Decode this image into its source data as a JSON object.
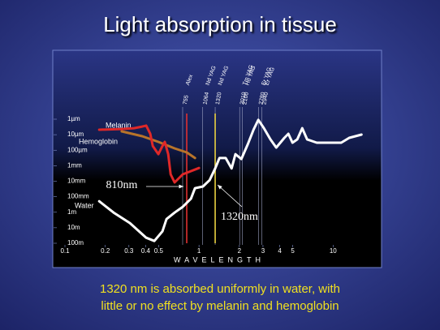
{
  "chart_data": {
    "type": "line",
    "title": "Light absorption in tissue",
    "x_label": "WAVELENGTH",
    "caption": [
      "1320 nm is absorbed uniformly in water, with",
      "little or no effect by melanin and hemoglobin"
    ],
    "x_scale": "log",
    "y_scale": "log",
    "y_reversed": true,
    "xlim": [
      0.1,
      20
    ],
    "xticks": [
      0.1,
      0.2,
      0.3,
      0.4,
      0.5,
      1,
      2,
      3,
      4,
      5,
      10
    ],
    "ylim": [
      1e-06,
      100
    ],
    "yticks": [
      {
        "value": 1e-06,
        "label": "1µm"
      },
      {
        "value": 1e-05,
        "label": "10µm"
      },
      {
        "value": 0.0001,
        "label": "100µm"
      },
      {
        "value": 0.001,
        "label": "1mm"
      },
      {
        "value": 0.01,
        "label": "10mm"
      },
      {
        "value": 0.1,
        "label": "100mm"
      },
      {
        "value": 1,
        "label": "1m"
      },
      {
        "value": 10,
        "label": "10m"
      },
      {
        "value": 100,
        "label": "100m"
      }
    ],
    "series": [
      {
        "name": "Water",
        "color": "#ffffff",
        "x": [
          0.18,
          0.231,
          0.305,
          0.404,
          0.464,
          0.534,
          0.572,
          0.658,
          0.756,
          0.87,
          0.933,
          1.07,
          1.2,
          1.32,
          1.42,
          1.58,
          1.75,
          1.87,
          2.07,
          2.31,
          2.55,
          2.77,
          3.05,
          3.41,
          3.77,
          4.33,
          4.64,
          4.98,
          5.41,
          5.89,
          6.4,
          7.56,
          11.5,
          13.2,
          16.3
        ],
        "values": [
          0.195,
          1.05,
          5.0,
          44,
          71,
          17,
          2.75,
          1.05,
          0.45,
          0.135,
          0.028,
          0.022,
          0.0085,
          0.0015,
          0.00032,
          0.00032,
          0.0015,
          0.00018,
          0.00037,
          4.2e-05,
          4.8e-06,
          1.1e-06,
          3.8e-06,
          2e-05,
          6.8e-05,
          1.6e-05,
          8.7e-06,
          3.3e-05,
          2e-05,
          3.8e-06,
          2e-05,
          3.3e-05,
          3.3e-05,
          1.6e-05,
          9.8e-06
        ]
      },
      {
        "name": "Melanin",
        "color": "#b8742a",
        "x": [
          0.265,
          0.377,
          0.498,
          0.658,
          0.811,
          0.933
        ],
        "values": [
          6.1e-06,
          1.26e-05,
          2.9e-05,
          7.6e-05,
          0.00014,
          0.00032
        ]
      },
      {
        "name": "Hemoglobin",
        "color": "#e02828",
        "x": [
          0.18,
          0.265,
          0.327,
          0.377,
          0.404,
          0.433,
          0.452,
          0.498,
          0.534,
          0.556,
          0.589,
          0.614,
          0.658,
          0.756,
          1.0
        ],
        "values": [
          4.8e-06,
          4.3e-06,
          3.8e-06,
          3e-06,
          2.6e-06,
          8.7e-06,
          5.4e-05,
          0.00018,
          5.4e-05,
          2.9e-05,
          0.00018,
          0.0036,
          0.012,
          0.0036,
          0.0014
        ]
      }
    ],
    "lasers": [
      {
        "x": {
          "value": 0.755,
          "label": "755"
        },
        "name": "Alex"
      },
      {
        "x": {
          "value": 1.064,
          "label": "1064"
        },
        "name": "Nd YAG"
      },
      {
        "x": {
          "value": 1.32,
          "label": "1320"
        },
        "name": "Nd YAG"
      },
      {
        "x": {
          "value": 2.01,
          "label": "2010"
        },
        "name": "Tm YAG"
      },
      {
        "x": {
          "value": 2.1,
          "label": "2100"
        },
        "name": "Ho YAG"
      },
      {
        "x": {
          "value": 2.78,
          "label": "2780"
        },
        "name": "Er YAG"
      },
      {
        "x": {
          "value": 2.94,
          "label": "2940"
        },
        "name": "Er YAG"
      }
    ],
    "highlights": [
      {
        "x": 0.81,
        "label": "810nm",
        "color": "#e03030"
      },
      {
        "x": 1.32,
        "label": "1320nm",
        "color": "#e8d040"
      }
    ]
  }
}
